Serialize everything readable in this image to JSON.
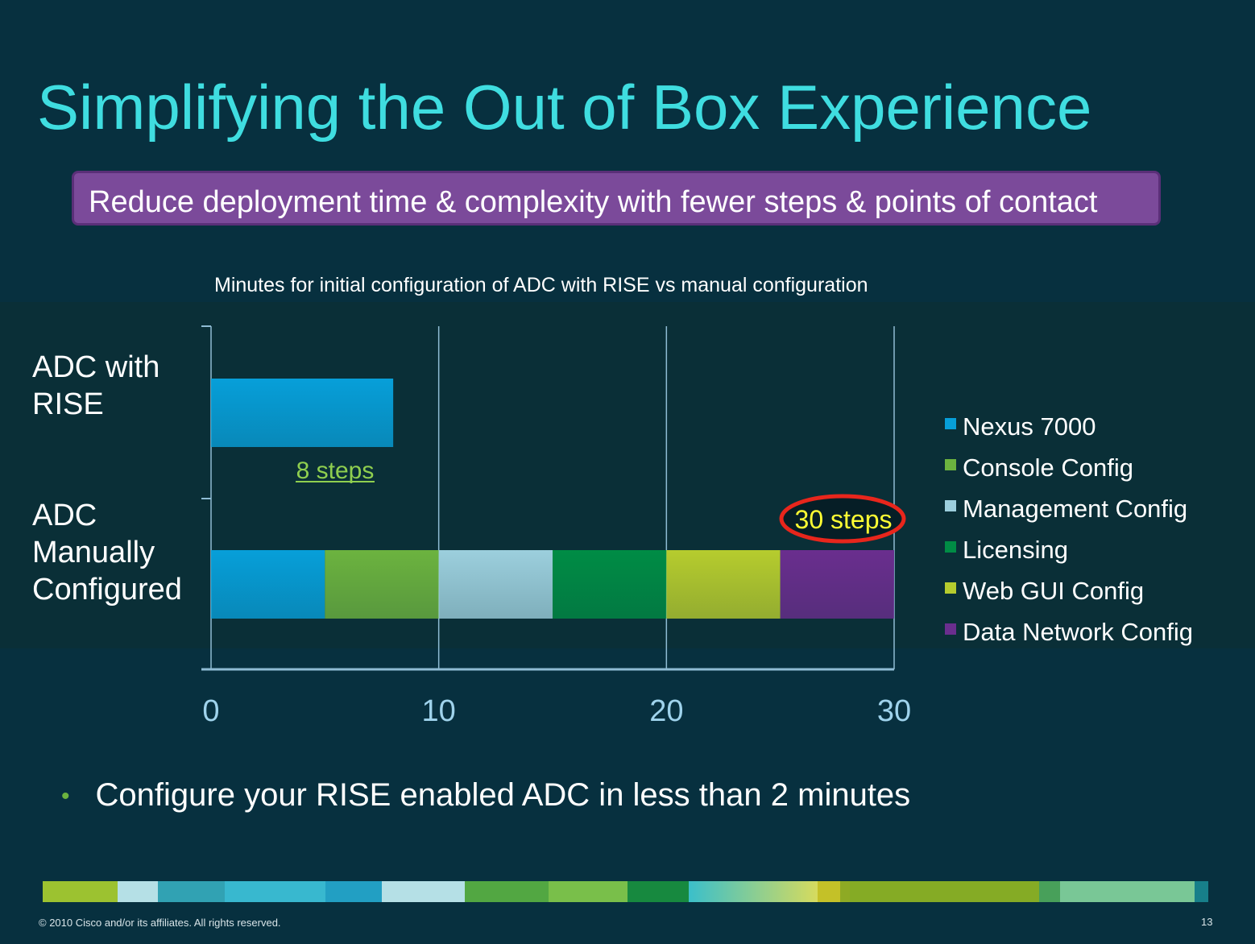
{
  "slide": {
    "title": "Simplifying the Out of Box Experience",
    "banner": "Reduce deployment time & complexity with fewer steps & points of contact",
    "bullet": "Configure your RISE enabled ADC in less than 2 minutes",
    "footer": "© 2010 Cisco and/or its affiliates. All rights reserved.",
    "page_number": "13",
    "strip_colors": [
      "#9cc230",
      "#b5e0e6",
      "#31a2b3",
      "#38b8cf",
      "#229fc3",
      "#b5e0e6",
      "#52a742",
      "#79bf4a",
      "#17893f",
      "gradient",
      "#c4c128",
      "#8eaa24",
      "#85ab25",
      "#48a05a",
      "#79c796",
      "#177f8a"
    ]
  },
  "chart_data": {
    "type": "bar",
    "orientation": "horizontal",
    "stacked": true,
    "title": "Minutes for initial configuration of ADC with RISE vs manual configuration",
    "categories": [
      "ADC with RISE",
      "ADC Manually Configured"
    ],
    "category_lines": [
      [
        "ADC with",
        "RISE"
      ],
      [
        "ADC",
        "Manually",
        "Configured"
      ]
    ],
    "series": [
      {
        "name": "Nexus 7000",
        "color": "#079fd9",
        "values": [
          8,
          5
        ]
      },
      {
        "name": "Console Config",
        "color": "#6cb33f",
        "values": [
          0,
          5
        ]
      },
      {
        "name": "Management Config",
        "color": "#9ccfdd",
        "values": [
          0,
          5
        ]
      },
      {
        "name": "Licensing",
        "color": "#008c45",
        "values": [
          0,
          5
        ]
      },
      {
        "name": "Web GUI Config",
        "color": "#b6cc2e",
        "values": [
          0,
          5
        ]
      },
      {
        "name": "Data Network Config",
        "color": "#6a2e8e",
        "values": [
          0,
          5
        ]
      }
    ],
    "xlim": [
      0,
      30
    ],
    "xticks": [
      "0",
      "10",
      "20",
      "30"
    ],
    "grid": true,
    "legend": "right",
    "annotations": [
      {
        "text": "8 steps",
        "color": "#8fcf4f",
        "underline": true
      },
      {
        "text": "30 steps",
        "color": "#ffff33",
        "circled": true,
        "circle_color": "#e8261c"
      }
    ]
  }
}
